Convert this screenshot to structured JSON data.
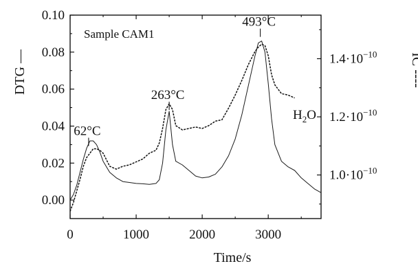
{
  "chart_data": {
    "type": "line",
    "annotations": {
      "sample": "Sample CAM1",
      "peaks": [
        {
          "label": "62°C",
          "x": 280,
          "y": 0.0285
        },
        {
          "label": "263°C",
          "x": 1500,
          "y": 0.048
        },
        {
          "label": "493°C",
          "x": 2880,
          "y": 0.0875
        }
      ],
      "species": "H",
      "species_sub": "2",
      "species_end": "O"
    },
    "axes": {
      "x": {
        "label": "Time/s",
        "range": [
          0,
          3800
        ],
        "ticks": [
          0,
          1000,
          2000,
          3000
        ],
        "tick_labels": [
          "0",
          "1000",
          "2000",
          "3000"
        ]
      },
      "y_left": {
        "label": "DTG —",
        "range": [
          -0.01,
          0.1
        ],
        "ticks": [
          0.0,
          0.02,
          0.04,
          0.06,
          0.08,
          0.1
        ],
        "tick_labels": [
          "0.00",
          "0.02",
          "0.04",
          "0.06",
          "0.08",
          "0.10"
        ]
      },
      "y_right": {
        "label": "IC ----",
        "range": [
          8.5e-11,
          1.55e-10
        ],
        "ticks": [
          1e-10,
          1.2e-10,
          1.4e-10
        ],
        "tick_mantissa": [
          "1.0·10",
          "1.2·10",
          "1.4·10"
        ],
        "tick_exponent": "−10"
      }
    },
    "series": [
      {
        "name": "DTG",
        "axis": "left",
        "style": "solid",
        "x": [
          0,
          50,
          100,
          150,
          200,
          250,
          300,
          350,
          400,
          450,
          500,
          600,
          700,
          800,
          900,
          1000,
          1100,
          1200,
          1300,
          1350,
          1400,
          1450,
          1500,
          1550,
          1600,
          1700,
          1800,
          1900,
          2000,
          2100,
          2200,
          2300,
          2400,
          2500,
          2600,
          2700,
          2800,
          2850,
          2900,
          2950,
          3000,
          3050,
          3100,
          3200,
          3300,
          3400,
          3500,
          3600,
          3700,
          3800
        ],
        "y": [
          0.0,
          0.003,
          0.008,
          0.015,
          0.022,
          0.028,
          0.032,
          0.032,
          0.03,
          0.026,
          0.021,
          0.015,
          0.012,
          0.01,
          0.0095,
          0.009,
          0.0088,
          0.0085,
          0.009,
          0.011,
          0.02,
          0.038,
          0.048,
          0.03,
          0.021,
          0.019,
          0.016,
          0.013,
          0.012,
          0.0125,
          0.014,
          0.018,
          0.024,
          0.033,
          0.046,
          0.062,
          0.078,
          0.085,
          0.086,
          0.08,
          0.063,
          0.044,
          0.03,
          0.021,
          0.018,
          0.016,
          0.012,
          0.009,
          0.006,
          0.004
        ]
      },
      {
        "name": "IC",
        "axis": "right",
        "style": "dashed",
        "x": [
          0,
          50,
          100,
          150,
          200,
          250,
          300,
          350,
          400,
          450,
          500,
          600,
          700,
          800,
          900,
          1000,
          1100,
          1200,
          1300,
          1350,
          1400,
          1450,
          1500,
          1550,
          1600,
          1700,
          1800,
          1900,
          2000,
          2100,
          2200,
          2300,
          2400,
          2500,
          2600,
          2700,
          2800,
          2850,
          2900,
          2950,
          3000,
          3050,
          3100,
          3200,
          3300,
          3400
        ],
        "y": [
          8.75e-11,
          9.05e-11,
          9.45e-11,
          9.85e-11,
          1.03e-10,
          1.06e-10,
          1.075e-10,
          1.09e-10,
          1.09e-10,
          1.085e-10,
          1.075e-10,
          1.03e-10,
          1.02e-10,
          1.03e-10,
          1.035e-10,
          1.045e-10,
          1.055e-10,
          1.075e-10,
          1.085e-10,
          1.11e-10,
          1.16e-10,
          1.225e-10,
          1.245e-10,
          1.225e-10,
          1.17e-10,
          1.155e-10,
          1.16e-10,
          1.165e-10,
          1.16e-10,
          1.17e-10,
          1.185e-10,
          1.19e-10,
          1.23e-10,
          1.275e-10,
          1.325e-10,
          1.38e-10,
          1.425e-10,
          1.44e-10,
          1.45e-10,
          1.445e-10,
          1.41e-10,
          1.345e-10,
          1.31e-10,
          1.28e-10,
          1.275e-10,
          1.265e-10
        ]
      }
    ]
  }
}
